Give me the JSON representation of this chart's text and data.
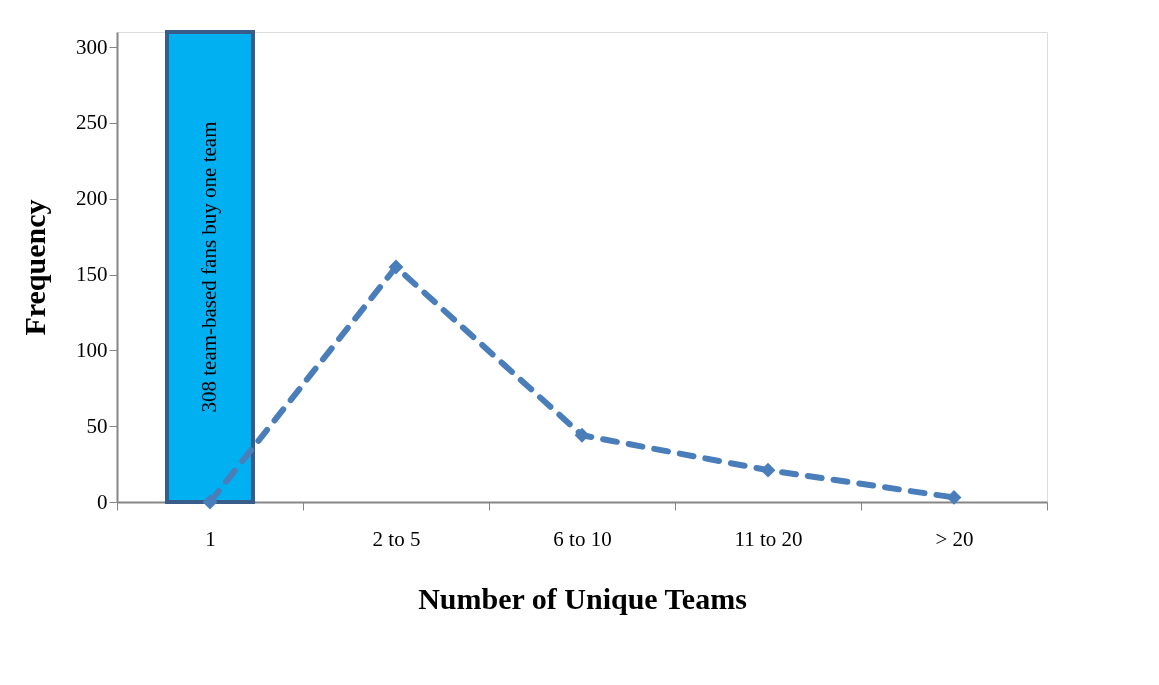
{
  "chart_data": {
    "type": "line",
    "xlabel": "Number of Unique Teams",
    "ylabel": "Frequency",
    "categories": [
      "1",
      "2 to 5",
      "6 to 10",
      "11 to 20",
      "> 20"
    ],
    "series": [
      {
        "color": "#4a7ebb",
        "values": [
          0,
          155,
          44,
          21,
          3
        ]
      }
    ],
    "ylim": [
      0,
      310
    ],
    "yticks": [
      0,
      50,
      100,
      150,
      200,
      250,
      300
    ],
    "marker": "diamond",
    "line_style": "dashed",
    "grid": false,
    "bands": [
      {
        "axis": "x",
        "from": "1",
        "to": "1",
        "label": "308 team-based fans buy one team",
        "color": "#00b0f0"
      }
    ]
  }
}
